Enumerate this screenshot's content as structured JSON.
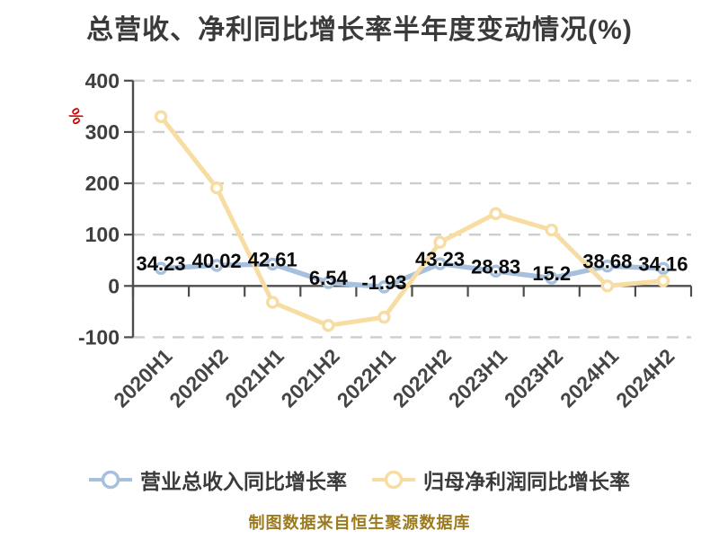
{
  "title": "总营收、净利同比增长率半年度变动情况(%)",
  "y_axis_unit_mark": "%",
  "footer": "制图数据来自恒生聚源数据库",
  "colors": {
    "revenue_line": "#a6c0dd",
    "profit_line": "#f8dda2",
    "grid": "#cdcdcd",
    "axis": "#4d4d4d",
    "tick_label": "#3f3f3f",
    "data_label": "#0a0a0a",
    "title_text": "#3a3a3a",
    "footer_text": "#9c7a1e",
    "unit_mark": "#d60000",
    "legend_text": "#3a3a3a",
    "marker_fill": "#ffffff"
  },
  "legend": [
    {
      "label": "营业总收入同比增长率",
      "color": "#a6c0dd"
    },
    {
      "label": "归母净利润同比增长率",
      "color": "#f8dda2"
    }
  ],
  "chart_data": {
    "type": "line",
    "title": "总营收、净利同比增长率半年度变动情况(%)",
    "xlabel": "",
    "ylabel": "%",
    "categories": [
      "2020H1",
      "2020H2",
      "2021H1",
      "2021H2",
      "2022H1",
      "2022H2",
      "2023H1",
      "2023H2",
      "2024H1",
      "2024H2"
    ],
    "series": [
      {
        "name": "营业总收入同比增长率",
        "color": "#a6c0dd",
        "values": [
          34.23,
          40.02,
          42.61,
          6.54,
          -1.93,
          43.23,
          28.83,
          15.2,
          38.68,
          34.16
        ],
        "show_labels": true
      },
      {
        "name": "归母净利润同比增长率",
        "color": "#f8dda2",
        "values": [
          330,
          191,
          -32,
          -77,
          -61,
          85,
          141,
          109,
          0,
          10
        ],
        "show_labels": false
      }
    ],
    "ylim": [
      -100,
      400
    ],
    "yticks": [
      400,
      300,
      200,
      100,
      0,
      -100
    ],
    "grid": "horizontal-dashed",
    "legend_position": "bottom"
  }
}
